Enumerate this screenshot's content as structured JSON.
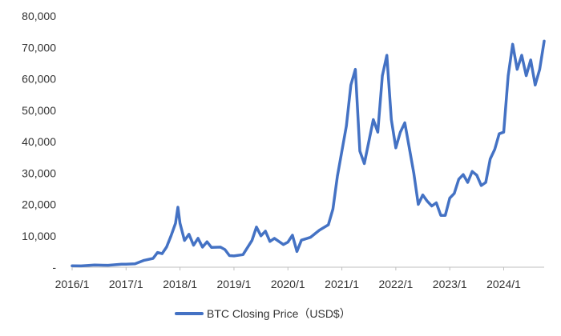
{
  "chart_data": {
    "type": "line",
    "title": "",
    "xlabel": "",
    "ylabel": "",
    "x_ticks": [
      "2016/1",
      "2017/1",
      "2018/1",
      "2019/1",
      "2020/1",
      "2021/1",
      "2022/1",
      "2023/1",
      "2024/1"
    ],
    "y_ticks": [
      "-",
      "10,000",
      "20,000",
      "30,000",
      "40,000",
      "50,000",
      "60,000",
      "70,000",
      "80,000"
    ],
    "ylim": [
      0,
      80000
    ],
    "xlim": [
      "2016-01",
      "2024-10"
    ],
    "grid": false,
    "legend_position": "bottom",
    "series": [
      {
        "name": "BTC Closing Price（USD$）",
        "color": "#4472C4",
        "points": [
          [
            "2016-01",
            430
          ],
          [
            "2016-03",
            420
          ],
          [
            "2016-06",
            680
          ],
          [
            "2016-09",
            610
          ],
          [
            "2016-12",
            960
          ],
          [
            "2017-01",
            970
          ],
          [
            "2017-03",
            1080
          ],
          [
            "2017-05",
            2200
          ],
          [
            "2017-07",
            2800
          ],
          [
            "2017-08",
            4700
          ],
          [
            "2017-09",
            4300
          ],
          [
            "2017-10",
            6400
          ],
          [
            "2017-11",
            10000
          ],
          [
            "2017-12",
            14000
          ],
          [
            "2017-12-17",
            19100
          ],
          [
            "2018-01",
            14000
          ],
          [
            "2018-02",
            8500
          ],
          [
            "2018-03",
            10500
          ],
          [
            "2018-04",
            7000
          ],
          [
            "2018-05",
            9200
          ],
          [
            "2018-06",
            6400
          ],
          [
            "2018-07",
            8100
          ],
          [
            "2018-08",
            6300
          ],
          [
            "2018-10",
            6400
          ],
          [
            "2018-11",
            5600
          ],
          [
            "2018-12",
            3700
          ],
          [
            "2019-01",
            3600
          ],
          [
            "2019-03",
            4000
          ],
          [
            "2019-05",
            8500
          ],
          [
            "2019-06",
            12800
          ],
          [
            "2019-07",
            10000
          ],
          [
            "2019-08",
            11500
          ],
          [
            "2019-09",
            8200
          ],
          [
            "2019-10",
            9200
          ],
          [
            "2019-12",
            7200
          ],
          [
            "2020-01",
            8000
          ],
          [
            "2020-02",
            10200
          ],
          [
            "2020-03",
            5000
          ],
          [
            "2020-04",
            8600
          ],
          [
            "2020-06",
            9500
          ],
          [
            "2020-08",
            11800
          ],
          [
            "2020-10",
            13500
          ],
          [
            "2020-11",
            18500
          ],
          [
            "2020-12",
            29000
          ],
          [
            "2021-01",
            37000
          ],
          [
            "2021-02",
            45000
          ],
          [
            "2021-03",
            58000
          ],
          [
            "2021-04",
            63000
          ],
          [
            "2021-05",
            37000
          ],
          [
            "2021-06",
            33000
          ],
          [
            "2021-07",
            40000
          ],
          [
            "2021-08",
            47000
          ],
          [
            "2021-09",
            43000
          ],
          [
            "2021-10",
            61000
          ],
          [
            "2021-11",
            67500
          ],
          [
            "2021-12",
            47000
          ],
          [
            "2022-01",
            38000
          ],
          [
            "2022-02",
            43000
          ],
          [
            "2022-03",
            46000
          ],
          [
            "2022-04",
            38000
          ],
          [
            "2022-05",
            30000
          ],
          [
            "2022-06",
            20000
          ],
          [
            "2022-07",
            23000
          ],
          [
            "2022-08",
            21000
          ],
          [
            "2022-09",
            19500
          ],
          [
            "2022-10",
            20500
          ],
          [
            "2022-11",
            16500
          ],
          [
            "2022-12",
            16500
          ],
          [
            "2023-01",
            22000
          ],
          [
            "2023-02",
            23500
          ],
          [
            "2023-03",
            28000
          ],
          [
            "2023-04",
            29500
          ],
          [
            "2023-05",
            27000
          ],
          [
            "2023-06",
            30500
          ],
          [
            "2023-07",
            29300
          ],
          [
            "2023-08",
            26000
          ],
          [
            "2023-09",
            27000
          ],
          [
            "2023-10",
            34500
          ],
          [
            "2023-11",
            37500
          ],
          [
            "2023-12",
            42500
          ],
          [
            "2024-01",
            43000
          ],
          [
            "2024-02",
            61000
          ],
          [
            "2024-03",
            71000
          ],
          [
            "2024-04",
            63000
          ],
          [
            "2024-05",
            67500
          ],
          [
            "2024-06",
            61000
          ],
          [
            "2024-07",
            66000
          ],
          [
            "2024-08",
            58000
          ],
          [
            "2024-09",
            63000
          ],
          [
            "2024-10",
            72000
          ]
        ]
      }
    ]
  }
}
